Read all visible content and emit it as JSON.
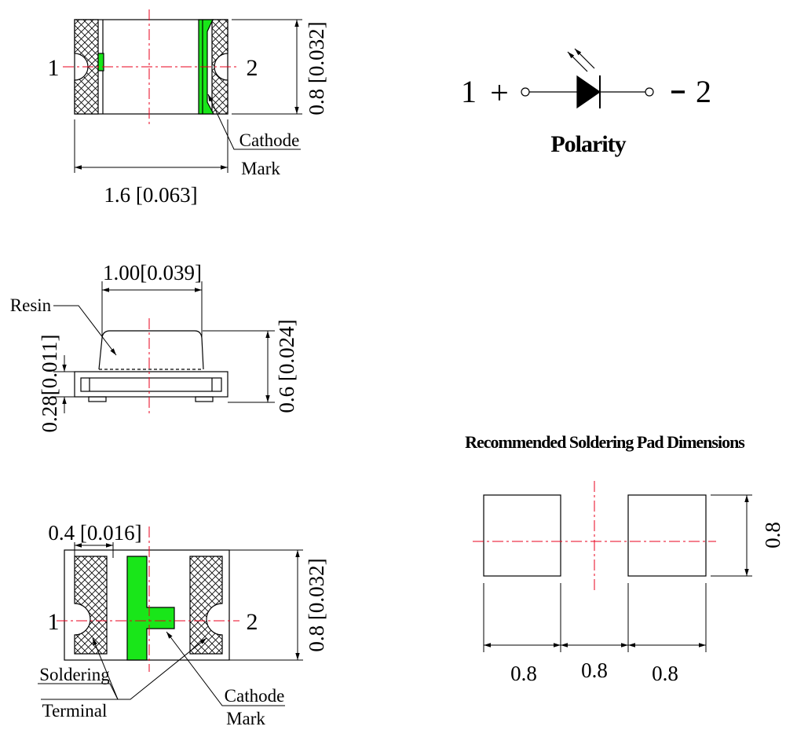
{
  "top_view": {
    "pin_left": "1",
    "pin_right": "2",
    "width_dim": "1.6 [0.063]",
    "height_dim": "0.8 [0.032]",
    "cathode_line1": "Cathode",
    "cathode_line2": "Mark"
  },
  "polarity": {
    "pin1": "1",
    "plus": "+",
    "minus": "-",
    "pin2": "2",
    "title": "Polarity"
  },
  "side_view": {
    "top_width_dim": "1.00[0.039]",
    "resin_label": "Resin",
    "base_height_dim": "0.28[0.011]",
    "total_height_dim": "0.6 [0.024]"
  },
  "bottom_view": {
    "terminal_width_dim": "0.4 [0.016]",
    "pin_left": "1",
    "pin_right": "2",
    "height_dim": "0.8 [0.032]",
    "soldering_line1": "Soldering",
    "soldering_line2": "Terminal",
    "cathode_line1": "Cathode",
    "cathode_line2": "Mark"
  },
  "pad": {
    "title": "Recommended Soldering Pad Dimensions",
    "dim_pad_left": "0.8",
    "dim_gap": "0.8",
    "dim_pad_right": "0.8",
    "dim_height": "0.8"
  },
  "colors": {
    "line": "#000000",
    "centerline": "#e8001c",
    "cathode_fill": "#19e619"
  }
}
